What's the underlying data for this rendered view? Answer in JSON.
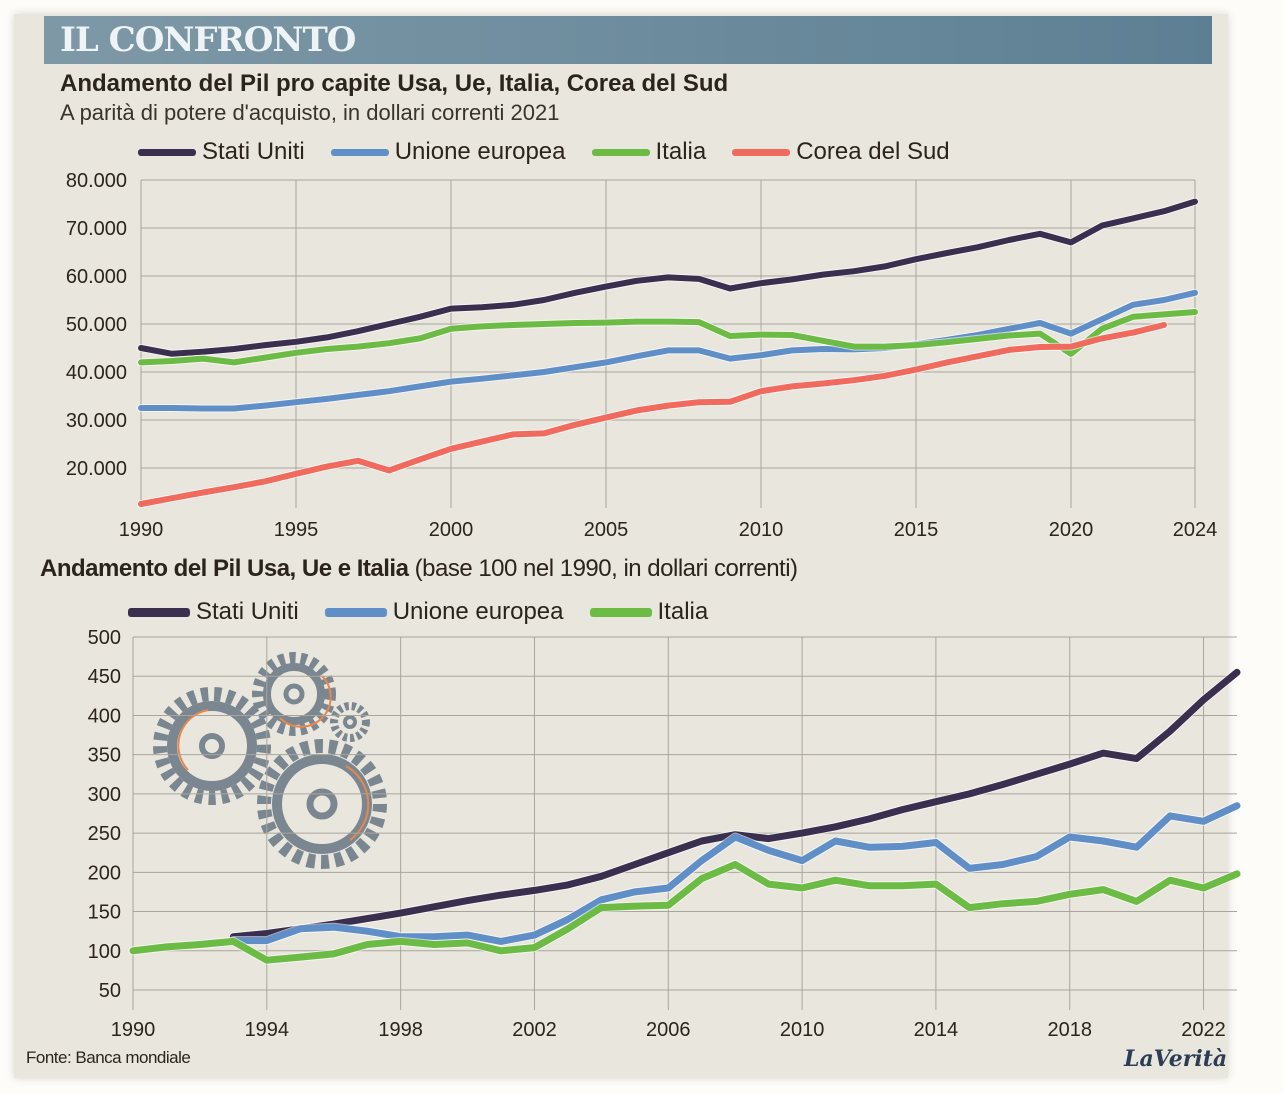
{
  "header": {
    "banner": "IL CONFRONTO"
  },
  "footer": {
    "source": "Fonte: Banca mondiale",
    "brand": "LaVerità"
  },
  "colors": {
    "usa": "#3b2f4f",
    "ue": "#5f8fc6",
    "italia": "#6cbb45",
    "corea": "#f06a5e"
  },
  "decorations": {
    "illustration": "gears-icon"
  },
  "chart_data": [
    {
      "type": "line",
      "title": "Andamento del Pil pro capite Usa, Ue, Italia, Corea del Sud",
      "subtitle": "A parità di potere d'acquisto, in dollari correnti 2021",
      "xlabel": "",
      "ylabel": "",
      "x": [
        1990,
        1991,
        1992,
        1993,
        1994,
        1995,
        1996,
        1997,
        1998,
        1999,
        2000,
        2001,
        2002,
        2003,
        2004,
        2005,
        2006,
        2007,
        2008,
        2009,
        2010,
        2011,
        2012,
        2013,
        2014,
        2015,
        2016,
        2017,
        2018,
        2019,
        2020,
        2021,
        2022,
        2023,
        2024
      ],
      "xticks": [
        "1990",
        "1995",
        "2000",
        "2005",
        "2010",
        "2015",
        "2020",
        "2024"
      ],
      "xtick_values": [
        1990,
        1995,
        2000,
        2005,
        2010,
        2015,
        2020,
        2024
      ],
      "yticks": [
        "20.000",
        "30.000",
        "40.000",
        "50.000",
        "60.000",
        "70.000",
        "80.000"
      ],
      "ytick_values": [
        20000,
        30000,
        40000,
        50000,
        60000,
        70000,
        80000
      ],
      "ylim": [
        20000,
        80000
      ],
      "xlim": [
        1990,
        2024
      ],
      "grid": true,
      "legend": "top",
      "series": [
        {
          "name": "Stati Uniti",
          "key": "usa",
          "values": [
            45000,
            43800,
            44200,
            44800,
            45600,
            46300,
            47200,
            48500,
            50000,
            51500,
            53200,
            53500,
            54000,
            55000,
            56500,
            57800,
            59000,
            59700,
            59400,
            57400,
            58500,
            59300,
            60300,
            61000,
            62000,
            63500,
            64800,
            66000,
            67500,
            68800,
            67000,
            70500,
            72000,
            73500,
            75500
          ]
        },
        {
          "name": "Unione europea",
          "key": "ue",
          "values": [
            32500,
            32500,
            32400,
            32400,
            33000,
            33700,
            34400,
            35200,
            36000,
            37000,
            38000,
            38600,
            39300,
            40000,
            41000,
            42000,
            43300,
            44500,
            44500,
            42800,
            43500,
            44500,
            44800,
            44700,
            45000,
            45800,
            46700,
            47700,
            49000,
            50200,
            48000,
            51000,
            54000,
            55000,
            56500
          ]
        },
        {
          "name": "Italia",
          "key": "italia",
          "values": [
            42000,
            42300,
            42800,
            42000,
            43000,
            44000,
            44800,
            45300,
            46000,
            47000,
            49000,
            49500,
            49800,
            50000,
            50200,
            50300,
            50500,
            50500,
            50400,
            47500,
            47800,
            47700,
            46500,
            45300,
            45300,
            45600,
            46200,
            46900,
            47600,
            48000,
            43800,
            49000,
            51500,
            52000,
            52500
          ]
        },
        {
          "name": "Corea del Sud",
          "key": "corea",
          "values": [
            12500,
            13700,
            14900,
            16000,
            17200,
            18800,
            20300,
            21500,
            19500,
            21800,
            24000,
            25500,
            27000,
            27200,
            29000,
            30500,
            32000,
            33000,
            33700,
            33800,
            36000,
            37000,
            37600,
            38300,
            39200,
            40500,
            42000,
            43300,
            44600,
            45200,
            45300,
            47000,
            48200,
            49800,
            null
          ]
        }
      ]
    },
    {
      "type": "line",
      "title": "Andamento del Pil Usa, Ue e Italia",
      "title_note": "(base 100 nel 1990, in dollari correnti)",
      "xlabel": "",
      "ylabel": "",
      "x": [
        1990,
        1991,
        1992,
        1993,
        1994,
        1995,
        1996,
        1997,
        1998,
        1999,
        2000,
        2001,
        2002,
        2003,
        2004,
        2005,
        2006,
        2007,
        2008,
        2009,
        2010,
        2011,
        2012,
        2013,
        2014,
        2015,
        2016,
        2017,
        2018,
        2019,
        2020,
        2021,
        2022,
        2023
      ],
      "xticks": [
        "1990",
        "1994",
        "1998",
        "2002",
        "2006",
        "2010",
        "2014",
        "2018",
        "2022"
      ],
      "xtick_values": [
        1990,
        1994,
        1998,
        2002,
        2006,
        2010,
        2014,
        2018,
        2022
      ],
      "yticks": [
        "50",
        "100",
        "150",
        "200",
        "250",
        "300",
        "350",
        "400",
        "450",
        "500"
      ],
      "ytick_values": [
        50,
        100,
        150,
        200,
        250,
        300,
        350,
        400,
        450,
        500
      ],
      "ylim": [
        50,
        500
      ],
      "xlim": [
        1990,
        2023
      ],
      "grid": true,
      "legend": "top",
      "series": [
        {
          "name": "Stati Uniti",
          "key": "usa",
          "values": [
            null,
            null,
            null,
            118,
            122,
            128,
            134,
            141,
            148,
            156,
            164,
            171,
            177,
            184,
            195,
            210,
            225,
            240,
            248,
            243,
            250,
            258,
            268,
            280,
            290,
            300,
            312,
            325,
            338,
            352,
            345,
            380,
            420,
            455
          ]
        },
        {
          "name": "Unione europea",
          "key": "ue",
          "values": [
            null,
            null,
            null,
            113,
            113,
            128,
            130,
            125,
            118,
            118,
            120,
            112,
            120,
            140,
            165,
            175,
            180,
            215,
            245,
            228,
            215,
            240,
            232,
            233,
            238,
            205,
            210,
            220,
            245,
            240,
            232,
            272,
            265,
            285
          ]
        },
        {
          "name": "Italia",
          "key": "italia",
          "values": [
            100,
            105,
            108,
            112,
            88,
            92,
            96,
            108,
            112,
            108,
            110,
            100,
            104,
            128,
            155,
            157,
            158,
            192,
            210,
            185,
            180,
            190,
            183,
            183,
            185,
            155,
            160,
            163,
            172,
            178,
            163,
            190,
            180,
            198
          ]
        }
      ]
    }
  ]
}
